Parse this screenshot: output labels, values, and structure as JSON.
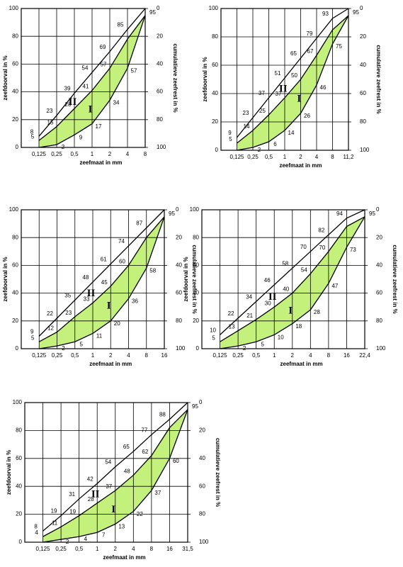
{
  "chart_data": [
    {
      "type": "line",
      "categories": [
        "0,125",
        "0,25",
        "0,5",
        "1",
        "2",
        "4",
        "8"
      ],
      "ylim": [
        0,
        100
      ],
      "yticks": [
        0,
        20,
        40,
        60,
        80,
        100
      ],
      "y2lim": [
        100,
        0
      ],
      "y2ticks": [
        0,
        20,
        40,
        60,
        80,
        100
      ],
      "ylabel": "zeefdoorval in %",
      "y2label": "cumulatieve zeefrest in %",
      "xlabel": "zeefmaat in mm",
      "zones": [
        "II",
        "I"
      ],
      "fill": "#c4f07c",
      "series": [
        {
          "color": "#000000",
          "values": [
            8,
            23,
            39,
            54,
            69,
            85,
            100
          ],
          "value_labels": [
            "8",
            "23",
            "39",
            "54",
            "69",
            "85",
            null
          ]
        },
        {
          "color": "#000000",
          "values": [
            5,
            15,
            28,
            41,
            57,
            78,
            95
          ],
          "value_labels": [
            "5",
            "15",
            "28",
            "41",
            "57",
            null,
            null
          ]
        },
        {
          "color": "#000000",
          "values": [
            0,
            2,
            9,
            17,
            34,
            57,
            95
          ],
          "value_labels": [
            null,
            "2",
            "9",
            "17",
            "34",
            "57",
            "95"
          ]
        }
      ]
    },
    {
      "type": "line",
      "categories": [
        "0,125",
        "0,25",
        "0,5",
        "1",
        "2",
        "4",
        "8",
        "11,2"
      ],
      "ylim": [
        0,
        100
      ],
      "yticks": [
        0,
        20,
        40,
        60,
        80,
        100
      ],
      "y2lim": [
        100,
        0
      ],
      "y2ticks": [
        0,
        20,
        40,
        60,
        80,
        100
      ],
      "ylabel": "zeefdoorval in %",
      "y2label": "cumulatieve zeefrest in %",
      "xlabel": "zeefmaat in mm",
      "zones": [
        "II",
        "I"
      ],
      "fill": "#c4f07c",
      "series": [
        {
          "color": "#000000",
          "values": [
            9,
            23,
            37,
            51,
            65,
            79,
            93,
            100
          ],
          "value_labels": [
            "9",
            "23",
            "37",
            "51",
            "65",
            "79",
            "93",
            null
          ]
        },
        {
          "color": "#000000",
          "values": [
            5,
            14,
            25,
            37,
            50,
            67,
            85,
            95
          ],
          "value_labels": [
            "5",
            "14",
            "25",
            "37",
            "50",
            "67",
            null,
            null
          ]
        },
        {
          "color": "#000000",
          "values": [
            0,
            2,
            6,
            14,
            26,
            46,
            75,
            95
          ],
          "value_labels": [
            null,
            "2",
            "6",
            "14",
            "26",
            "46",
            "75",
            "95"
          ]
        }
      ]
    },
    {
      "type": "line",
      "categories": [
        "0,125",
        "0,25",
        "0,5",
        "1",
        "2",
        "4",
        "8",
        "16"
      ],
      "ylim": [
        0,
        100
      ],
      "yticks": [
        0,
        20,
        40,
        60,
        80,
        100
      ],
      "y2lim": [
        100,
        0
      ],
      "y2ticks": [
        0,
        20,
        40,
        60,
        80,
        100
      ],
      "ylabel": "zeefdoorval in %",
      "y2label": "cumulatieve zeefrest in %",
      "xlabel": "zeefmaat in mm",
      "zones": [
        "II",
        "I"
      ],
      "fill": "#c4f07c",
      "series": [
        {
          "color": "#000000",
          "values": [
            9,
            22,
            35,
            48,
            61,
            74,
            87,
            100
          ],
          "value_labels": [
            "9",
            "22",
            "35",
            "48",
            "61",
            "74",
            "87",
            null
          ]
        },
        {
          "color": "#000000",
          "values": [
            5,
            12,
            23,
            33,
            45,
            60,
            80,
            95
          ],
          "value_labels": [
            "5",
            "12",
            "23",
            "33",
            "45",
            "60",
            null,
            null
          ]
        },
        {
          "color": "#000000",
          "values": [
            0,
            2,
            5,
            11,
            20,
            36,
            58,
            95
          ],
          "value_labels": [
            null,
            "2",
            "5",
            "11",
            "20",
            "36",
            "58",
            "95"
          ]
        }
      ]
    },
    {
      "type": "line",
      "categories": [
        "0,125",
        "0,25",
        "0,5",
        "1",
        "2",
        "4",
        "8",
        "16",
        "22,4"
      ],
      "ylim": [
        0,
        100
      ],
      "yticks": [
        0,
        20,
        40,
        60,
        80,
        100
      ],
      "y2lim": [
        100,
        0
      ],
      "y2ticks": [
        0,
        20,
        40,
        60,
        80,
        100
      ],
      "ylabel": "zeefdoorval in %",
      "y2label": "cumulatieve zeefrest in %",
      "xlabel": "zeefmaat in mm",
      "zones": [
        "II",
        "I"
      ],
      "fill": "#c4f07c",
      "series": [
        {
          "color": "#000000",
          "values": [
            10,
            22,
            34,
            46,
            58,
            70,
            82,
            94,
            100
          ],
          "value_labels": [
            "10",
            "22",
            "34",
            "46",
            "58",
            "70",
            "82",
            "94",
            null
          ]
        },
        {
          "color": "#000000",
          "values": [
            5,
            13,
            21,
            30,
            40,
            54,
            70,
            88,
            95
          ],
          "value_labels": [
            "5",
            "13",
            "21",
            "30",
            "40",
            "54",
            "70",
            null,
            null
          ]
        },
        {
          "color": "#000000",
          "values": [
            0,
            2,
            5,
            10,
            18,
            28,
            47,
            73,
            95
          ],
          "value_labels": [
            null,
            "2",
            "5",
            "10",
            "18",
            "28",
            "47",
            "73",
            "95"
          ]
        }
      ]
    },
    {
      "type": "line",
      "categories": [
        "0,125",
        "0,25",
        "0,5",
        "1",
        "2",
        "4",
        "8",
        "16",
        "31,5"
      ],
      "ylim": [
        0,
        100
      ],
      "yticks": [
        0,
        20,
        40,
        60,
        80,
        100
      ],
      "y2lim": [
        100,
        0
      ],
      "y2ticks": [
        0,
        20,
        40,
        60,
        80,
        100
      ],
      "ylabel": "zeefdoorval in %",
      "y2label": "cumulatieve zeefrest in %",
      "xlabel": "zeefmaat in mm",
      "zones": [
        "II",
        "I"
      ],
      "fill": "#c4f07c",
      "series": [
        {
          "color": "#000000",
          "values": [
            8,
            19,
            31,
            42,
            54,
            65,
            77,
            88,
            100
          ],
          "value_labels": [
            "8",
            "19",
            "31",
            "42",
            "54",
            "65",
            "77",
            "88",
            null
          ]
        },
        {
          "color": "#000000",
          "values": [
            4,
            11,
            19,
            28,
            37,
            48,
            62,
            82,
            95
          ],
          "value_labels": [
            "4",
            "11",
            "19",
            "28",
            "37",
            "48",
            "62",
            null,
            null
          ]
        },
        {
          "color": "#000000",
          "values": [
            0,
            2,
            4,
            7,
            13,
            22,
            37,
            60,
            95
          ],
          "value_labels": [
            null,
            "2",
            "4",
            "7",
            "13",
            "22",
            "37",
            "60",
            "95"
          ]
        }
      ]
    }
  ]
}
